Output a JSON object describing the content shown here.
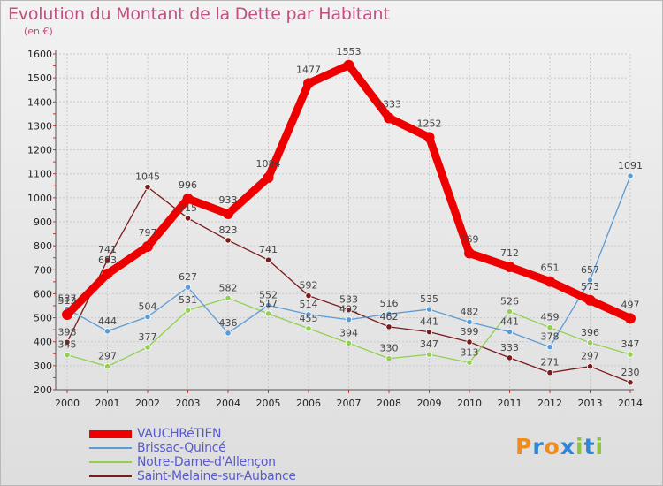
{
  "header": {
    "title": "Evolution du Montant de la Dette par Habitant",
    "subtitle": "(en €)"
  },
  "colors": {
    "title": "#c0507f",
    "axis_text": "#222222",
    "legend_text": "#5a5ad0",
    "grid": "#c9c9c9"
  },
  "brand": {
    "letters": [
      "P",
      "r",
      "o",
      "x",
      "i",
      "t",
      "i"
    ],
    "colors": [
      "#f08c1c",
      "#2e86d8",
      "#f08c1c",
      "#2e86d8",
      "#8cc63f",
      "#2e86d8",
      "#8cc63f"
    ]
  },
  "chart_data": {
    "type": "line",
    "title": "Evolution du Montant de la Dette par Habitant",
    "ylabel": "(en €)",
    "xlabel": "",
    "ylim": [
      200,
      1600
    ],
    "yticks": [
      200,
      300,
      400,
      500,
      600,
      700,
      800,
      900,
      1000,
      1100,
      1200,
      1300,
      1400,
      1500,
      1600
    ],
    "grid": true,
    "legend_position": "bottom-left",
    "x": [
      "2000",
      "2001",
      "2002",
      "2003",
      "2004",
      "2005",
      "2006",
      "2007",
      "2008",
      "2009",
      "2010",
      "2011",
      "2012",
      "2013",
      "2014"
    ],
    "series": [
      {
        "name": "VAUCHRéTIEN",
        "color": "#ee0000",
        "line_width": 9,
        "values": [
          513,
          683,
          797,
          996,
          933,
          1084,
          1477,
          1553,
          1333,
          1252,
          769,
          712,
          651,
          573,
          497
        ]
      },
      {
        "name": "Brissac-Quincé",
        "color": "#5b9bd5",
        "line_width": 1.3,
        "values": [
          537,
          444,
          504,
          627,
          436,
          552,
          514,
          492,
          516,
          535,
          482,
          441,
          378,
          657,
          1091
        ]
      },
      {
        "name": "Notre-Dame-d'Allençon",
        "color": "#92d050",
        "line_width": 1.3,
        "values": [
          345,
          297,
          377,
          531,
          582,
          517,
          455,
          394,
          330,
          347,
          313,
          526,
          459,
          396,
          347
        ]
      },
      {
        "name": "Saint-Melaine-sur-Aubance",
        "color": "#7b1c1c",
        "line_width": 1.3,
        "values": [
          398,
          741,
          1045,
          915,
          823,
          741,
          592,
          533,
          462,
          441,
          399,
          333,
          271,
          297,
          230
        ]
      }
    ]
  }
}
